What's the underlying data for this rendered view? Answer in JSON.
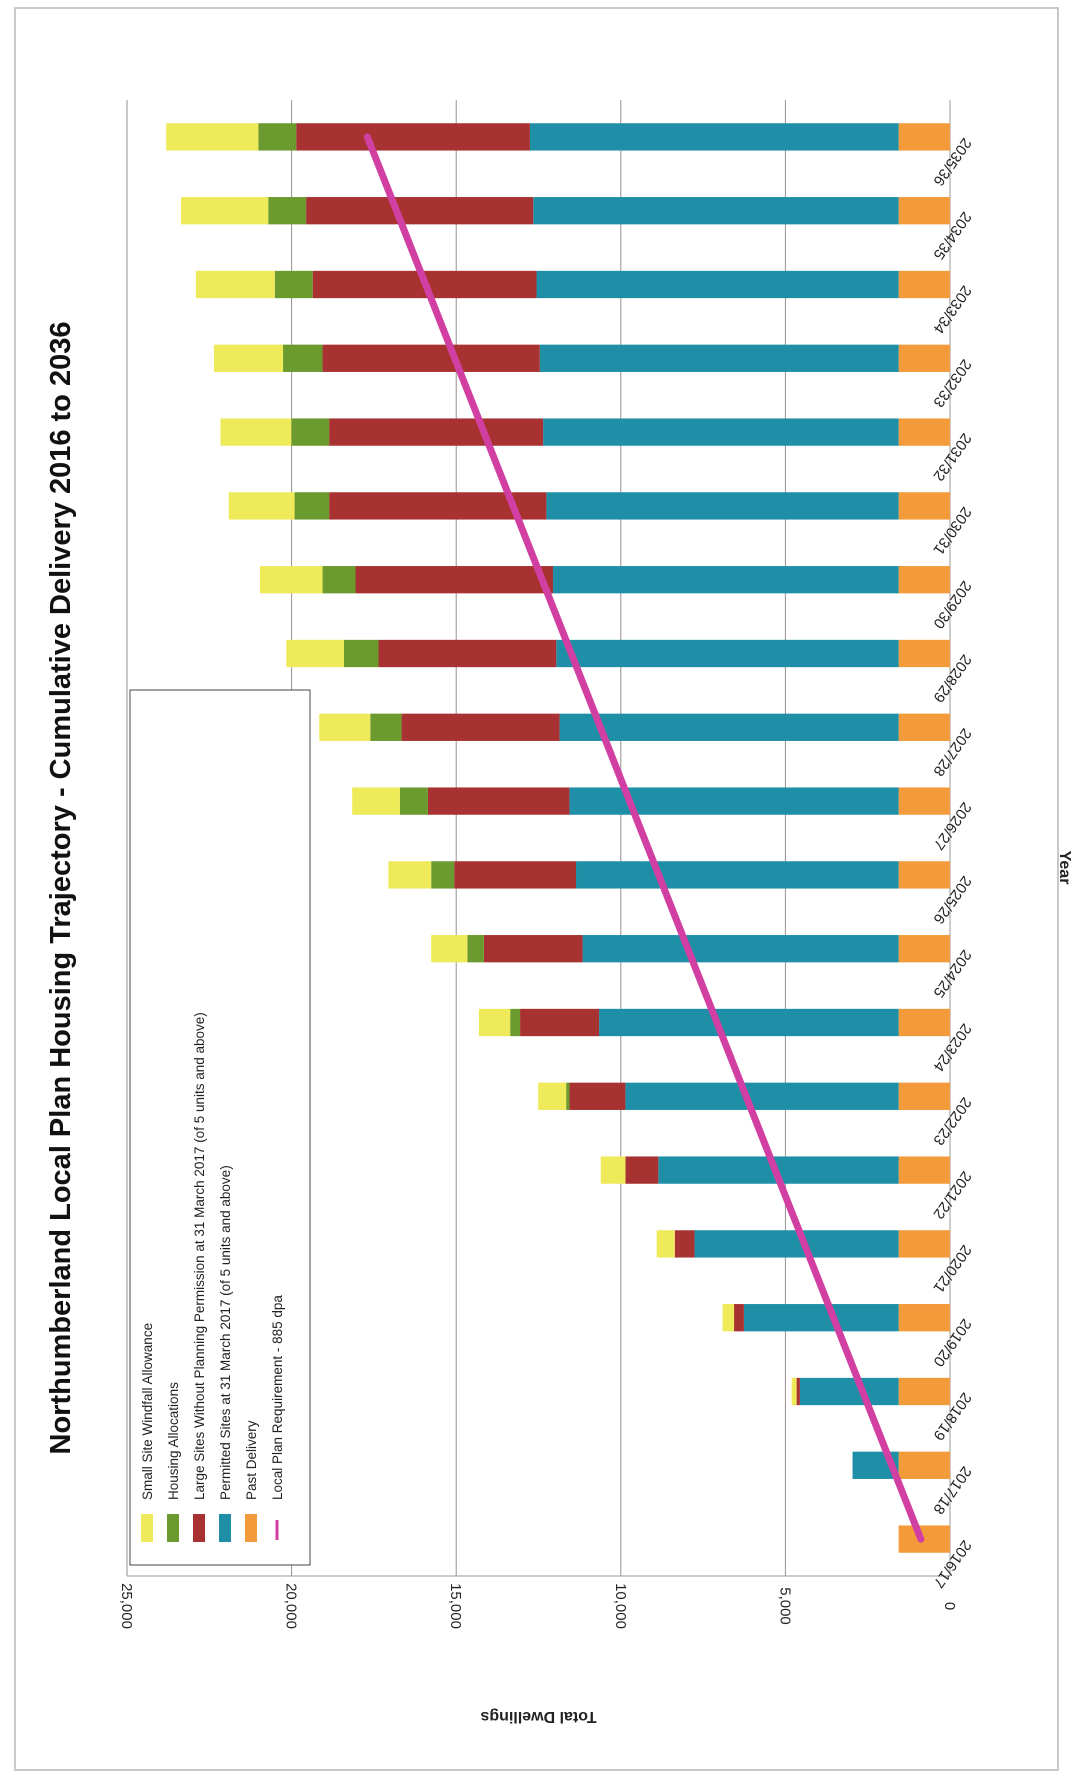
{
  "chart_data": {
    "type": "bar",
    "stacked": true,
    "title": "Northumberland Local Plan Housing Trajectory - Cumulative Delivery 2016 to 2036",
    "xlabel": "Year",
    "ylabel": "Total Dwellings",
    "ylim": [
      0,
      25000
    ],
    "yticks": [
      "0",
      "5,000",
      "10,000",
      "15,000",
      "20,000",
      "25,000"
    ],
    "ytick_values": [
      0,
      5000,
      10000,
      15000,
      20000,
      25000
    ],
    "grid": true,
    "legend_position": "top-left",
    "categories": [
      "2016/17",
      "2017/18",
      "2018/19",
      "2019/20",
      "2020/21",
      "2021/22",
      "2022/23",
      "2023/24",
      "2024/25",
      "2025/26",
      "2026/27",
      "2027/28",
      "2028/29",
      "2029/30",
      "2030/31",
      "2031/32",
      "2032/33",
      "2033/34",
      "2034/35",
      "2035/36"
    ],
    "series": [
      {
        "name": "Past Delivery",
        "color": "#f39a3a",
        "values": [
          1560,
          1560,
          1560,
          1560,
          1560,
          1560,
          1560,
          1560,
          1560,
          1560,
          1560,
          1560,
          1560,
          1560,
          1560,
          1560,
          1560,
          1560,
          1560,
          1560
        ]
      },
      {
        "name": "Permitted Sites at 31 March 2017 (of 5 units and above)",
        "color": "#1f8fa8",
        "values": [
          0,
          1400,
          3000,
          4700,
          6200,
          7300,
          8300,
          9100,
          9600,
          9800,
          10000,
          10300,
          10400,
          10500,
          10700,
          10800,
          10900,
          11000,
          11100,
          11200
        ]
      },
      {
        "name": "Large Sites Without Planning Permission at 31 March 2017 (of 5 units and above)",
        "color": "#a83232",
        "values": [
          0,
          0,
          100,
          300,
          600,
          1000,
          1700,
          2400,
          3000,
          3700,
          4300,
          4800,
          5400,
          6000,
          6600,
          6500,
          6600,
          6800,
          6900,
          7100
        ]
      },
      {
        "name": "Housing Allocations",
        "color": "#6b9a2e",
        "values": [
          0,
          0,
          0,
          0,
          0,
          0,
          100,
          300,
          500,
          700,
          850,
          950,
          1050,
          1000,
          1050,
          1150,
          1200,
          1150,
          1150,
          1150
        ]
      },
      {
        "name": "Small Site Windfall Allowance",
        "color": "#eeea5a",
        "values": [
          0,
          0,
          150,
          350,
          550,
          750,
          850,
          950,
          1100,
          1300,
          1450,
          1550,
          1750,
          1900,
          2000,
          2150,
          2100,
          2400,
          2650,
          2800
        ]
      }
    ],
    "line_series": {
      "name": "Local Plan Requirement - 885 dpa",
      "color": "#d23fa2",
      "values": [
        885,
        1770,
        2655,
        3540,
        4425,
        5310,
        6195,
        7080,
        7965,
        8850,
        9735,
        10620,
        11505,
        12390,
        13275,
        14160,
        15045,
        15930,
        16815,
        17700
      ]
    },
    "legend": [
      {
        "label": "Small Site Windfall Allowance",
        "color": "#eeea5a",
        "kind": "bar"
      },
      {
        "label": "Housing Allocations",
        "color": "#6b9a2e",
        "kind": "bar"
      },
      {
        "label": "Large Sites Without Planning Permission at 31 March 2017 (of 5 units and above)",
        "color": "#a83232",
        "kind": "bar"
      },
      {
        "label": "Permitted Sites at 31 March 2017 (of 5 units and above)",
        "color": "#1f8fa8",
        "kind": "bar"
      },
      {
        "label": "Past Delivery",
        "color": "#f39a3a",
        "kind": "bar"
      },
      {
        "label": "Local Plan Requirement - 885 dpa",
        "color": "#d23fa2",
        "kind": "line"
      }
    ]
  }
}
